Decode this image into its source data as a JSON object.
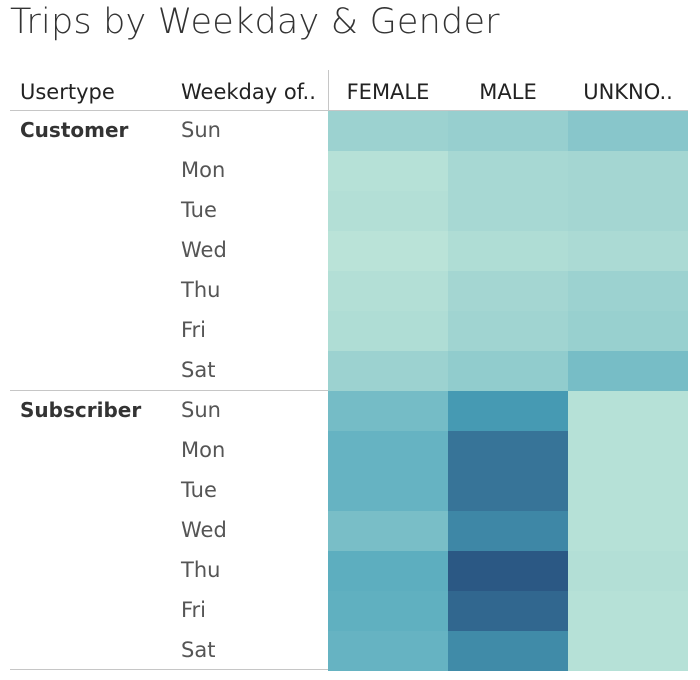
{
  "title": "Trips by Weekday & Gender",
  "headers": {
    "usertype": "Usertype",
    "weekday": "Weekday of..",
    "columns": [
      "FEMALE",
      "MALE",
      "UNKNO.."
    ]
  },
  "palette": {
    "low": "#bae3d8",
    "mid": "#4aa3ba",
    "high": "#2b5884"
  },
  "chart_data": {
    "type": "heatmap",
    "title": "Trips by Weekday & Gender",
    "row_dimension_1": "Usertype",
    "row_dimension_2": "Weekday of..",
    "column_dimension": "Gender",
    "columns": [
      "FEMALE",
      "MALE",
      "UNKNO.."
    ],
    "days": [
      "Sun",
      "Mon",
      "Tue",
      "Wed",
      "Thu",
      "Fri",
      "Sat"
    ],
    "groups": [
      {
        "name": "Customer",
        "values": [
          [
            0.16,
            0.19,
            0.27
          ],
          [
            0.02,
            0.1,
            0.12
          ],
          [
            0.04,
            0.1,
            0.12
          ],
          [
            0.0,
            0.06,
            0.08
          ],
          [
            0.04,
            0.12,
            0.16
          ],
          [
            0.06,
            0.14,
            0.18
          ],
          [
            0.16,
            0.22,
            0.36
          ]
        ]
      },
      {
        "name": "Subscriber",
        "values": [
          [
            0.37,
            0.65,
            0.02
          ],
          [
            0.45,
            0.85,
            0.02
          ],
          [
            0.45,
            0.85,
            0.02
          ],
          [
            0.35,
            0.75,
            0.02
          ],
          [
            0.5,
            1.0,
            0.04
          ],
          [
            0.48,
            0.92,
            0.02
          ],
          [
            0.45,
            0.73,
            0.02
          ]
        ]
      }
    ],
    "color_scale": "relative trip count (0 = lightest, 1 = darkest)",
    "legend": "none"
  }
}
